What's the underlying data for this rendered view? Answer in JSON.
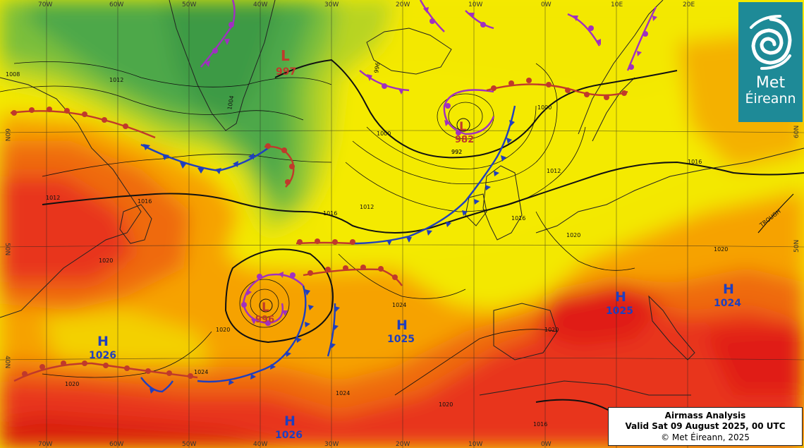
{
  "map": {
    "longitude_labels": [
      "70W",
      "60W",
      "50W",
      "40W",
      "30W",
      "20W",
      "10W",
      "0W",
      "10E",
      "20E"
    ],
    "latitude_labels": [
      "60N",
      "50N",
      "40N"
    ],
    "isobar_labels": [
      "1012",
      "1008",
      "1004",
      "1000",
      "996",
      "992",
      "1016",
      "1020",
      "1024"
    ],
    "pressure_systems": [
      {
        "type": "L",
        "value": "997",
        "color": "#c0392b"
      },
      {
        "type": "L",
        "value": "982",
        "color": "#c0392b"
      },
      {
        "type": "L",
        "value": "996",
        "color": "#c0392b"
      },
      {
        "type": "H",
        "value": "1026",
        "color": "#1f3fbf"
      },
      {
        "type": "H",
        "value": "1025",
        "color": "#1f3fbf"
      },
      {
        "type": "H",
        "value": "1026",
        "color": "#1f3fbf"
      },
      {
        "type": "H",
        "value": "1025",
        "color": "#1f3fbf"
      },
      {
        "type": "H",
        "value": "1024",
        "color": "#1f3fbf"
      }
    ],
    "annotation": "TROUGH",
    "colors": {
      "cold_front": "#1f3fbf",
      "warm_front": "#c0392b",
      "occluded_front": "#a030c0",
      "airmass_warm": "#e8351c",
      "airmass_mid": "#f6a200",
      "airmass_cool": "#4da84a"
    }
  },
  "caption": {
    "title": "Airmass Analysis",
    "valid": "Valid Sat 09 August 2025, 00 UTC",
    "copyright": "© Met Éireann, 2025"
  },
  "logo": {
    "line1": "Met",
    "line2": "Éireann",
    "icon": "swirl-icon"
  }
}
